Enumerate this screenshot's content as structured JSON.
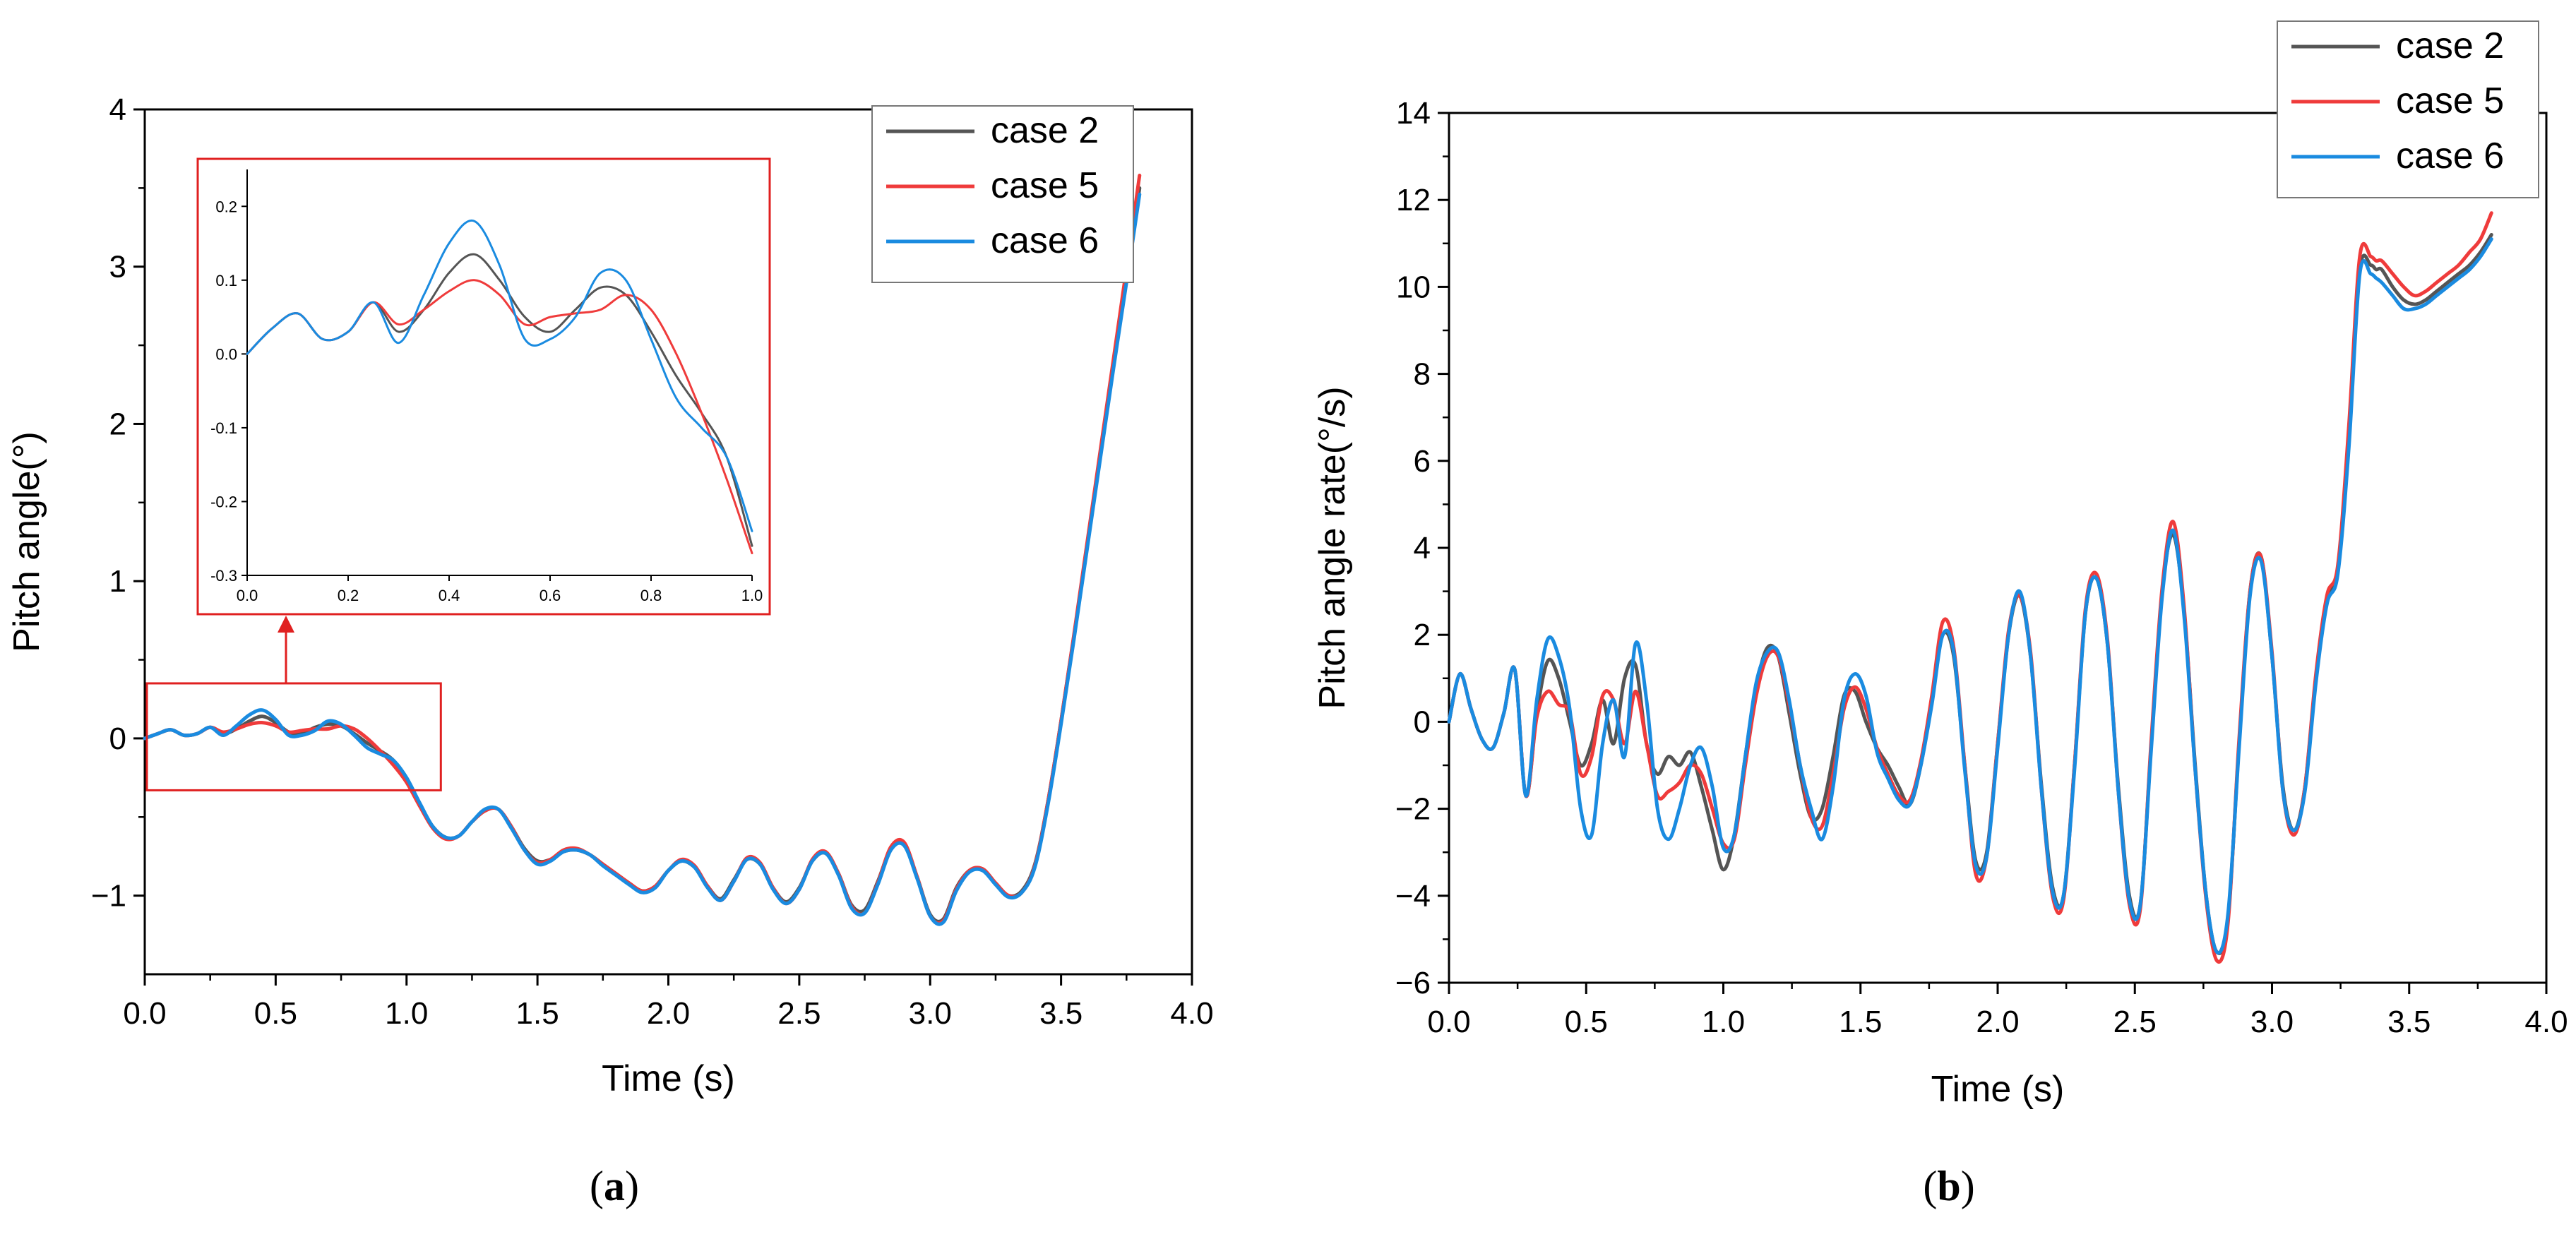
{
  "figure": {
    "panel_a_label": [
      "(",
      "a",
      ")"
    ],
    "panel_b_label": [
      "(",
      "b",
      ")"
    ]
  },
  "colors": {
    "case 2": "#555555",
    "case 5": "#ef3b3b",
    "case 6": "#1a8be0",
    "zoom_box": "#e02020",
    "axis": "#000000"
  },
  "chart_data": [
    {
      "id": "a",
      "type": "line",
      "xlabel": "Time (s)",
      "ylabel": "Pitch angle(°)",
      "xlim": [
        0.0,
        4.0
      ],
      "ylim": [
        -1.5,
        4.0
      ],
      "xticks": [
        0.0,
        0.5,
        1.0,
        1.5,
        2.0,
        2.5,
        3.0,
        3.5,
        4.0
      ],
      "xtick_labels": [
        "0.0",
        "0.5",
        "1.0",
        "1.5",
        "2.0",
        "2.5",
        "3.0",
        "3.5",
        "4.0"
      ],
      "yticks": [
        -1,
        0,
        1,
        2,
        3,
        4
      ],
      "ytick_labels": [
        "−1",
        "0",
        "1",
        "2",
        "3",
        "4"
      ],
      "legend": [
        "case 2",
        "case 5",
        "case 6"
      ],
      "legend_position": "top-right",
      "x": [
        0.0,
        0.05,
        0.1,
        0.15,
        0.2,
        0.25,
        0.3,
        0.35,
        0.4,
        0.45,
        0.5,
        0.55,
        0.6,
        0.65,
        0.7,
        0.75,
        0.8,
        0.85,
        0.9,
        0.95,
        1.0,
        1.05,
        1.1,
        1.15,
        1.2,
        1.25,
        1.3,
        1.35,
        1.4,
        1.45,
        1.5,
        1.55,
        1.6,
        1.65,
        1.7,
        1.75,
        1.8,
        1.85,
        1.9,
        1.95,
        2.0,
        2.05,
        2.1,
        2.15,
        2.2,
        2.25,
        2.3,
        2.35,
        2.4,
        2.45,
        2.5,
        2.55,
        2.6,
        2.65,
        2.7,
        2.75,
        2.8,
        2.85,
        2.9,
        2.95,
        3.0,
        3.05,
        3.1,
        3.15,
        3.2,
        3.25,
        3.3,
        3.35,
        3.4,
        3.45,
        3.5,
        3.55,
        3.6,
        3.65,
        3.7,
        3.75,
        3.8
      ],
      "series": [
        {
          "name": "case 2",
          "values": [
            0.0,
            0.03,
            0.055,
            0.02,
            0.03,
            0.07,
            0.03,
            0.06,
            0.11,
            0.14,
            0.1,
            0.04,
            0.03,
            0.07,
            0.09,
            0.08,
            0.03,
            -0.03,
            -0.08,
            -0.14,
            -0.26,
            -0.42,
            -0.56,
            -0.63,
            -0.62,
            -0.53,
            -0.46,
            -0.45,
            -0.56,
            -0.7,
            -0.78,
            -0.77,
            -0.72,
            -0.71,
            -0.74,
            -0.8,
            -0.86,
            -0.92,
            -0.97,
            -0.94,
            -0.84,
            -0.78,
            -0.82,
            -0.94,
            -1.02,
            -0.9,
            -0.77,
            -0.8,
            -0.95,
            -1.04,
            -0.95,
            -0.78,
            -0.73,
            -0.86,
            -1.06,
            -1.09,
            -0.91,
            -0.7,
            -0.67,
            -0.88,
            -1.12,
            -1.15,
            -0.95,
            -0.84,
            -0.83,
            -0.92,
            -1.0,
            -0.97,
            -0.8,
            -0.4,
            0.11,
            0.66,
            1.23,
            1.8,
            2.37,
            2.93,
            3.5
          ]
        },
        {
          "name": "case 5",
          "values": [
            0.0,
            0.03,
            0.055,
            0.02,
            0.03,
            0.07,
            0.04,
            0.06,
            0.09,
            0.1,
            0.08,
            0.04,
            0.05,
            0.06,
            0.06,
            0.08,
            0.06,
            0.0,
            -0.08,
            -0.17,
            -0.28,
            -0.43,
            -0.57,
            -0.64,
            -0.62,
            -0.53,
            -0.46,
            -0.45,
            -0.56,
            -0.71,
            -0.79,
            -0.77,
            -0.71,
            -0.7,
            -0.74,
            -0.8,
            -0.86,
            -0.92,
            -0.97,
            -0.94,
            -0.84,
            -0.77,
            -0.81,
            -0.94,
            -1.03,
            -0.91,
            -0.76,
            -0.79,
            -0.95,
            -1.05,
            -0.96,
            -0.77,
            -0.72,
            -0.86,
            -1.07,
            -1.11,
            -0.92,
            -0.69,
            -0.66,
            -0.88,
            -1.13,
            -1.16,
            -0.96,
            -0.84,
            -0.83,
            -0.92,
            -1.0,
            -0.98,
            -0.81,
            -0.4,
            0.11,
            0.67,
            1.25,
            1.83,
            2.41,
            2.99,
            3.58
          ]
        },
        {
          "name": "case 6",
          "values": [
            0.0,
            0.03,
            0.055,
            0.02,
            0.03,
            0.07,
            0.02,
            0.08,
            0.15,
            0.18,
            0.12,
            0.02,
            0.02,
            0.05,
            0.11,
            0.09,
            0.02,
            -0.06,
            -0.1,
            -0.14,
            -0.25,
            -0.41,
            -0.56,
            -0.63,
            -0.62,
            -0.53,
            -0.45,
            -0.45,
            -0.57,
            -0.71,
            -0.8,
            -0.78,
            -0.72,
            -0.71,
            -0.74,
            -0.81,
            -0.87,
            -0.93,
            -0.98,
            -0.95,
            -0.84,
            -0.78,
            -0.82,
            -0.95,
            -1.03,
            -0.91,
            -0.77,
            -0.8,
            -0.96,
            -1.05,
            -0.96,
            -0.78,
            -0.73,
            -0.87,
            -1.08,
            -1.11,
            -0.93,
            -0.71,
            -0.68,
            -0.89,
            -1.13,
            -1.17,
            -0.97,
            -0.85,
            -0.84,
            -0.93,
            -1.01,
            -0.98,
            -0.82,
            -0.42,
            0.09,
            0.64,
            1.21,
            1.78,
            2.35,
            2.9,
            3.46
          ]
        }
      ],
      "zoom_region": {
        "x": [
          0.0,
          1.05
        ],
        "y": [
          -0.33,
          0.35
        ]
      },
      "inset": {
        "xlim": [
          0.0,
          1.0
        ],
        "ylim": [
          -0.3,
          0.25
        ],
        "xticks": [
          0.0,
          0.2,
          0.4,
          0.6,
          0.8,
          1.0
        ],
        "xtick_labels": [
          "0.0",
          "0.2",
          "0.4",
          "0.6",
          "0.8",
          "1.0"
        ],
        "yticks": [
          -0.3,
          -0.2,
          -0.1,
          0.0,
          0.1,
          0.2
        ],
        "ytick_labels": [
          "-0.3",
          "-0.2",
          "-0.1",
          "0.0",
          "0.1",
          "0.2"
        ],
        "x": [
          0.0,
          0.05,
          0.1,
          0.15,
          0.2,
          0.25,
          0.3,
          0.35,
          0.4,
          0.45,
          0.5,
          0.55,
          0.6,
          0.65,
          0.7,
          0.75,
          0.8,
          0.85,
          0.9,
          0.95,
          1.0
        ],
        "series": [
          {
            "name": "case 2",
            "values": [
              0.0,
              0.035,
              0.055,
              0.02,
              0.03,
              0.07,
              0.03,
              0.06,
              0.11,
              0.135,
              0.1,
              0.05,
              0.03,
              0.06,
              0.09,
              0.08,
              0.03,
              -0.03,
              -0.08,
              -0.14,
              -0.26
            ]
          },
          {
            "name": "case 5",
            "values": [
              0.0,
              0.035,
              0.055,
              0.02,
              0.03,
              0.07,
              0.04,
              0.06,
              0.085,
              0.1,
              0.08,
              0.04,
              0.05,
              0.055,
              0.06,
              0.08,
              0.06,
              0.0,
              -0.08,
              -0.17,
              -0.27
            ]
          },
          {
            "name": "case 6",
            "values": [
              0.0,
              0.035,
              0.055,
              0.02,
              0.03,
              0.07,
              0.015,
              0.08,
              0.15,
              0.18,
              0.12,
              0.02,
              0.02,
              0.05,
              0.11,
              0.1,
              0.02,
              -0.06,
              -0.1,
              -0.14,
              -0.24
            ]
          }
        ]
      }
    },
    {
      "id": "b",
      "type": "line",
      "xlabel": "Time (s)",
      "ylabel": "Pitch angle rate(°/s)",
      "xlim": [
        0.0,
        4.0
      ],
      "ylim": [
        -6,
        14
      ],
      "xticks": [
        0.0,
        0.5,
        1.0,
        1.5,
        2.0,
        2.5,
        3.0,
        3.5,
        4.0
      ],
      "xtick_labels": [
        "0.0",
        "0.5",
        "1.0",
        "1.5",
        "2.0",
        "2.5",
        "3.0",
        "3.5",
        "4.0"
      ],
      "yticks": [
        -6,
        -4,
        -2,
        0,
        2,
        4,
        6,
        8,
        10,
        12,
        14
      ],
      "ytick_labels": [
        "−6",
        "−4",
        "−2",
        "0",
        "2",
        "4",
        "6",
        "8",
        "10",
        "12",
        "14"
      ],
      "legend": [
        "case 2",
        "case 5",
        "case 6"
      ],
      "legend_position": "top-right",
      "x": [
        0.0,
        0.04,
        0.08,
        0.12,
        0.16,
        0.2,
        0.24,
        0.28,
        0.32,
        0.36,
        0.4,
        0.44,
        0.48,
        0.52,
        0.56,
        0.6,
        0.64,
        0.68,
        0.72,
        0.76,
        0.8,
        0.84,
        0.88,
        0.92,
        0.96,
        1.0,
        1.04,
        1.08,
        1.12,
        1.16,
        1.2,
        1.24,
        1.28,
        1.32,
        1.36,
        1.4,
        1.44,
        1.48,
        1.52,
        1.56,
        1.6,
        1.64,
        1.68,
        1.72,
        1.76,
        1.8,
        1.84,
        1.88,
        1.92,
        1.96,
        2.0,
        2.04,
        2.08,
        2.12,
        2.16,
        2.2,
        2.24,
        2.28,
        2.32,
        2.36,
        2.4,
        2.44,
        2.48,
        2.52,
        2.56,
        2.6,
        2.64,
        2.68,
        2.72,
        2.76,
        2.8,
        2.84,
        2.88,
        2.92,
        2.96,
        3.0,
        3.04,
        3.08,
        3.12,
        3.16,
        3.2,
        3.24,
        3.28,
        3.32,
        3.36,
        3.38,
        3.4,
        3.44,
        3.48,
        3.52,
        3.56,
        3.6,
        3.64,
        3.68,
        3.72,
        3.76,
        3.8
      ],
      "series": [
        {
          "name": "case 2",
          "values": [
            0.0,
            1.1,
            0.3,
            -0.4,
            -0.6,
            0.2,
            1.2,
            -1.7,
            0.2,
            1.4,
            1.0,
            0.0,
            -1.0,
            -0.5,
            0.5,
            -0.5,
            1.0,
            1.3,
            -0.5,
            -1.2,
            -0.8,
            -1.0,
            -0.7,
            -1.5,
            -2.5,
            -3.4,
            -2.6,
            -0.8,
            0.8,
            1.7,
            1.5,
            0.2,
            -1.2,
            -2.2,
            -2.0,
            -0.8,
            0.6,
            0.7,
            0.0,
            -0.6,
            -1.0,
            -1.5,
            -1.9,
            -1.0,
            0.5,
            2.0,
            1.5,
            -1.0,
            -3.2,
            -3.0,
            -0.5,
            2.0,
            2.9,
            1.5,
            -1.5,
            -3.8,
            -4.0,
            -1.0,
            2.5,
            3.3,
            1.8,
            -1.5,
            -4.0,
            -4.2,
            -0.5,
            3.0,
            4.3,
            2.5,
            -1.0,
            -4.0,
            -5.3,
            -4.5,
            -0.5,
            3.0,
            3.8,
            1.5,
            -1.5,
            -2.5,
            -1.5,
            1.0,
            2.8,
            3.5,
            6.5,
            10.4,
            10.5,
            10.4,
            10.4,
            10.0,
            9.7,
            9.6,
            9.7,
            9.9,
            10.1,
            10.3,
            10.5,
            10.8,
            11.2
          ]
        },
        {
          "name": "case 5",
          "values": [
            0.0,
            1.1,
            0.3,
            -0.4,
            -0.6,
            0.2,
            1.2,
            -1.7,
            0.1,
            0.7,
            0.4,
            0.2,
            -1.2,
            -0.8,
            0.6,
            0.5,
            -0.5,
            0.7,
            -0.5,
            -1.7,
            -1.6,
            -1.4,
            -1.0,
            -1.2,
            -2.0,
            -2.8,
            -2.7,
            -1.0,
            0.6,
            1.5,
            1.5,
            0.4,
            -1.0,
            -2.2,
            -2.4,
            -1.2,
            0.3,
            0.8,
            0.3,
            -0.6,
            -1.2,
            -1.7,
            -1.8,
            -0.9,
            0.6,
            2.3,
            1.7,
            -1.0,
            -3.5,
            -3.1,
            -0.5,
            2.1,
            2.9,
            1.6,
            -1.6,
            -4.0,
            -4.1,
            -1.0,
            2.6,
            3.4,
            1.9,
            -1.6,
            -4.2,
            -4.3,
            -0.4,
            3.1,
            4.6,
            2.6,
            -1.1,
            -4.1,
            -5.5,
            -4.6,
            -0.4,
            3.0,
            3.8,
            1.6,
            -1.6,
            -2.6,
            -1.5,
            1.1,
            2.9,
            3.6,
            6.8,
            10.7,
            10.7,
            10.6,
            10.6,
            10.3,
            10.0,
            9.8,
            9.9,
            10.1,
            10.3,
            10.5,
            10.8,
            11.1,
            11.7
          ]
        },
        {
          "name": "case 6",
          "values": [
            0.0,
            1.1,
            0.3,
            -0.4,
            -0.6,
            0.2,
            1.2,
            -1.7,
            0.5,
            1.9,
            1.5,
            0.3,
            -2.0,
            -2.6,
            -0.5,
            0.5,
            -0.8,
            1.8,
            0.5,
            -2.0,
            -2.7,
            -2.0,
            -1.0,
            -0.6,
            -1.5,
            -2.9,
            -2.6,
            -0.8,
            0.9,
            1.6,
            1.6,
            0.5,
            -1.0,
            -2.0,
            -2.7,
            -1.5,
            0.5,
            1.1,
            0.6,
            -0.7,
            -1.3,
            -1.8,
            -1.9,
            -1.0,
            0.4,
            2.0,
            1.6,
            -1.1,
            -3.3,
            -3.1,
            -0.6,
            2.0,
            3.0,
            1.5,
            -1.6,
            -3.9,
            -4.0,
            -1.1,
            2.5,
            3.3,
            1.8,
            -1.6,
            -4.1,
            -4.2,
            -0.6,
            2.9,
            4.4,
            2.4,
            -1.1,
            -4.0,
            -5.3,
            -4.4,
            -0.6,
            2.9,
            3.7,
            1.5,
            -1.6,
            -2.5,
            -1.6,
            0.9,
            2.7,
            3.4,
            6.3,
            10.3,
            10.3,
            10.2,
            10.1,
            9.8,
            9.5,
            9.5,
            9.6,
            9.8,
            10.0,
            10.2,
            10.4,
            10.7,
            11.1
          ]
        }
      ]
    }
  ]
}
